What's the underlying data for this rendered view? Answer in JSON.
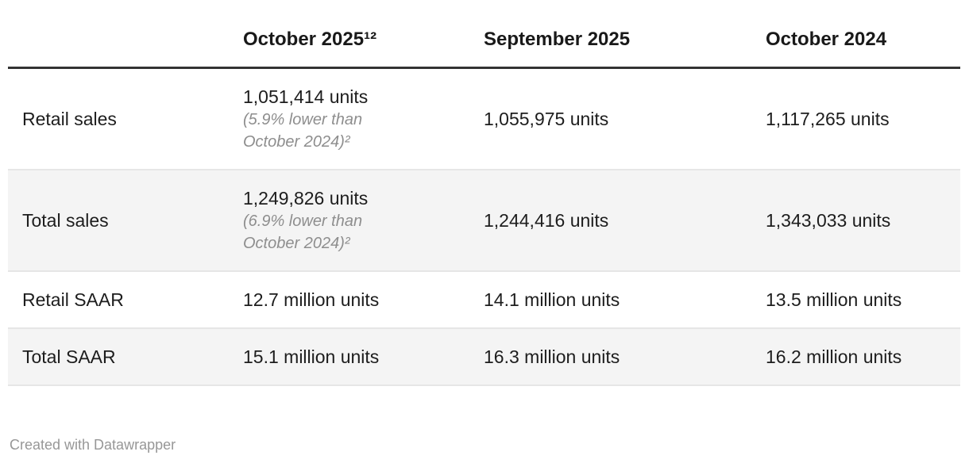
{
  "table": {
    "columns": [
      "",
      "October 2025¹²",
      "September 2025",
      "October 2024"
    ],
    "rows": [
      {
        "label": "Retail sales",
        "oct2025_value": "1,051,414 units",
        "oct2025_note_line1": "(5.9% lower than",
        "oct2025_note_line2": "October 2024)²",
        "sep2025_value": "1,055,975 units",
        "oct2024_value": "1,117,265 units"
      },
      {
        "label": "Total sales",
        "oct2025_value": "1,249,826 units",
        "oct2025_note_line1": "(6.9% lower than",
        "oct2025_note_line2": "October 2024)²",
        "sep2025_value": "1,244,416 units",
        "oct2024_value": "1,343,033 units"
      },
      {
        "label": "Retail SAAR",
        "oct2025_value": "12.7 million units",
        "sep2025_value": "14.1 million units",
        "oct2024_value": "13.5 million units"
      },
      {
        "label": "Total SAAR",
        "oct2025_value": "15.1 million units",
        "sep2025_value": "16.3 million units",
        "oct2024_value": "16.2 million units"
      }
    ]
  },
  "footer": {
    "attribution": "Created with Datawrapper"
  },
  "colors": {
    "header_text": "#191919",
    "body_text": "#1d1d1d",
    "note_text": "#8e8e8e",
    "stripe": "#f4f4f4",
    "row_border": "#e6e6e6",
    "header_rule": "#333333",
    "attribution_text": "#979797"
  },
  "chart_data": {
    "type": "table",
    "columns": [
      "",
      "October 2025¹²",
      "September 2025",
      "October 2024"
    ],
    "rows": [
      [
        "Retail sales",
        "1,051,414 units (5.9% lower than October 2024)²",
        "1,055,975 units",
        "1,117,265 units"
      ],
      [
        "Total sales",
        "1,249,826 units (6.9% lower than October 2024)²",
        "1,244,416 units",
        "1,343,033 units"
      ],
      [
        "Retail SAAR",
        "12.7 million units",
        "14.1 million units",
        "13.5 million units"
      ],
      [
        "Total SAAR",
        "15.1 million units",
        "16.3 million units",
        "16.2 million units"
      ]
    ],
    "title": "",
    "notes": "Zebra-striped comparison table of US vehicle sales; first data column carries year-over-year footnotes"
  }
}
